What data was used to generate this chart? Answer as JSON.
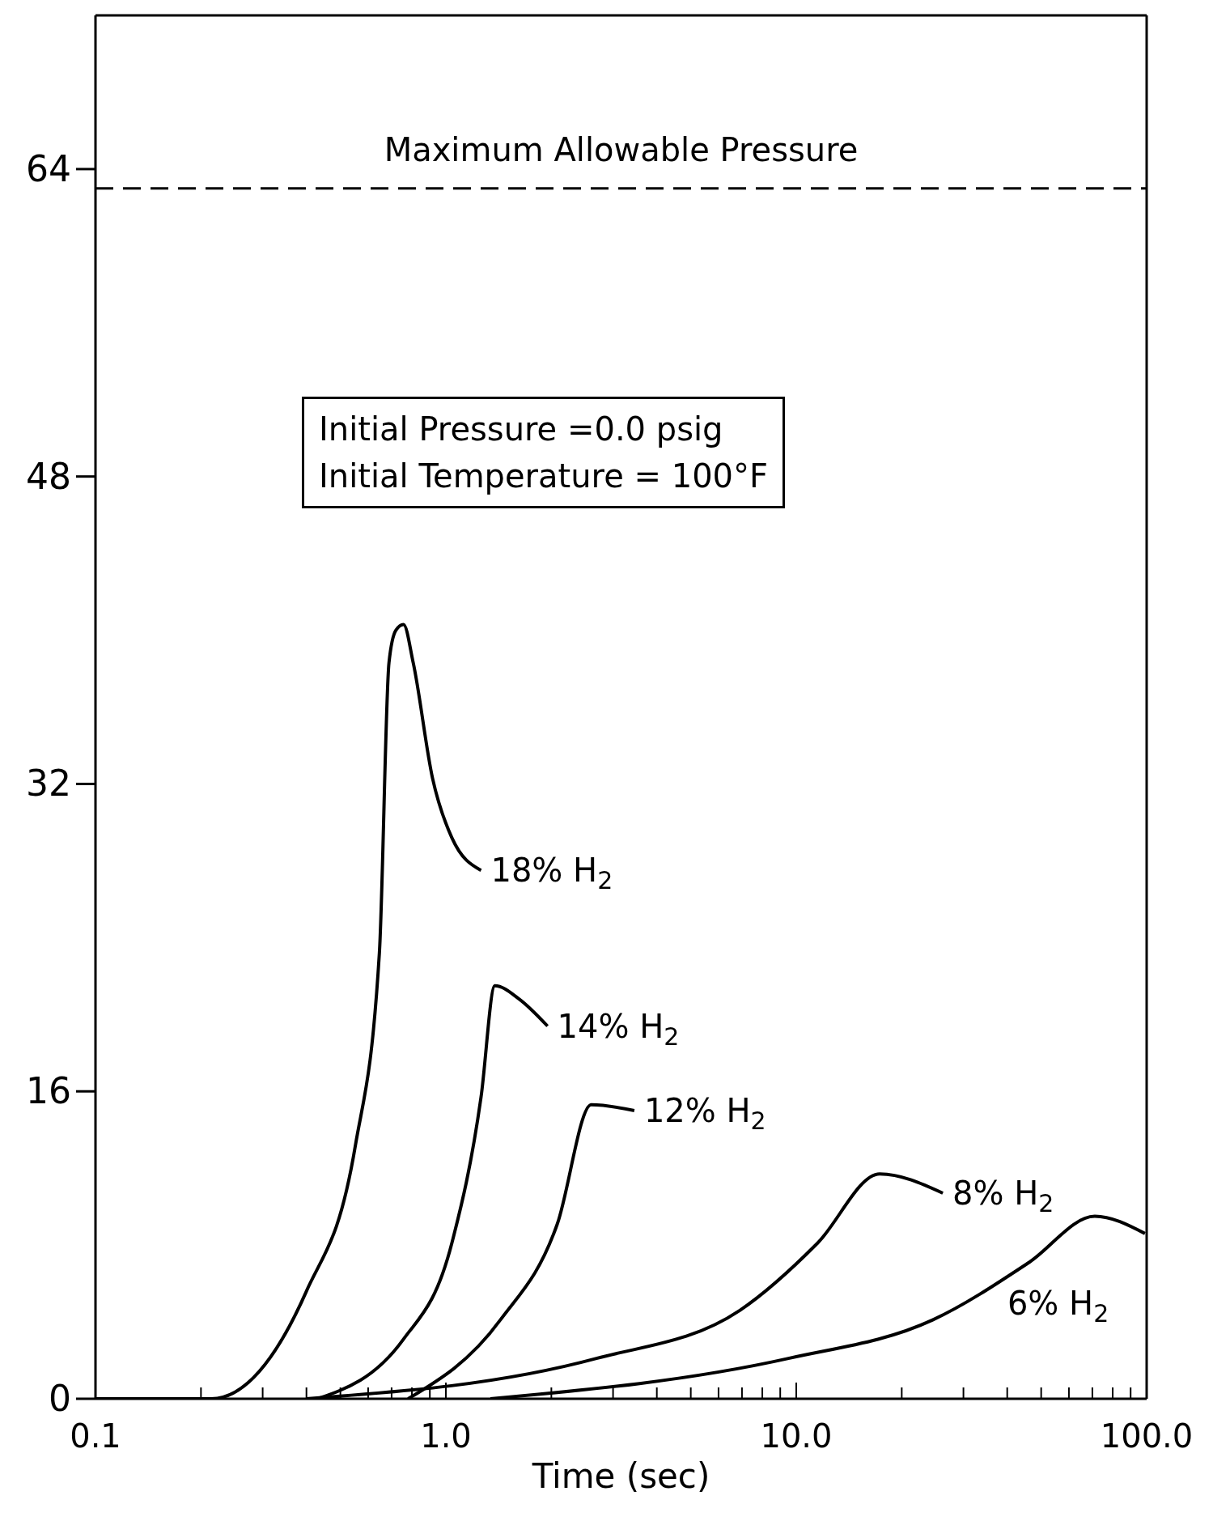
{
  "chart_data": {
    "type": "line",
    "xlabel": "Time (sec)",
    "log": "x",
    "xlim": [
      0.1,
      100
    ],
    "xticks": [
      {
        "value": 0.1,
        "label": "0.1"
      },
      {
        "value": 0.2,
        "label": null
      },
      {
        "value": 0.3,
        "label": null
      },
      {
        "value": 0.4,
        "label": null
      },
      {
        "value": 0.5,
        "label": null
      },
      {
        "value": 0.6,
        "label": null
      },
      {
        "value": 0.7,
        "label": null
      },
      {
        "value": 0.8,
        "label": null
      },
      {
        "value": 0.9,
        "label": null
      },
      {
        "value": 1,
        "label": "1.0"
      },
      {
        "value": 2,
        "label": null
      },
      {
        "value": 3,
        "label": null
      },
      {
        "value": 4,
        "label": null
      },
      {
        "value": 5,
        "label": null
      },
      {
        "value": 6,
        "label": null
      },
      {
        "value": 7,
        "label": null
      },
      {
        "value": 8,
        "label": null
      },
      {
        "value": 9,
        "label": null
      },
      {
        "value": 10,
        "label": "10.0"
      },
      {
        "value": 20,
        "label": null
      },
      {
        "value": 30,
        "label": null
      },
      {
        "value": 40,
        "label": null
      },
      {
        "value": 50,
        "label": null
      },
      {
        "value": 60,
        "label": null
      },
      {
        "value": 70,
        "label": null
      },
      {
        "value": 80,
        "label": null
      },
      {
        "value": 90,
        "label": null
      },
      {
        "value": 100,
        "label": "100.0"
      }
    ],
    "ylim": [
      0,
      72
    ],
    "yticks": [
      0,
      16,
      32,
      48,
      64
    ],
    "marker": "none",
    "line_style": "solid",
    "series": [
      {
        "name": "18% H$_{2}$",
        "color": "#000000",
        "x": [
          0.1,
          0.214,
          0.4,
          0.552,
          0.646,
          0.688,
          0.72,
          0.757,
          0.807,
          0.916,
          1.04,
          1.26
        ],
        "values": [
          0,
          0,
          5.6,
          13.2,
          23.2,
          38.3,
          40,
          40.3,
          38.3,
          32.3,
          29.2,
          27.5
        ]
      },
      {
        "name": "14% H$_{2}$",
        "color": "#000000",
        "x": [
          0.43,
          0.757,
          1.04,
          1.26,
          1.38,
          1.62,
          1.95
        ],
        "values": [
          0,
          3.1,
          8.1,
          15.7,
          21.5,
          20.8,
          19.4
        ]
      },
      {
        "name": "12% H$_{2}$",
        "color": "#000000",
        "x": [
          0.78,
          1.43,
          2.08,
          2.6,
          3.45
        ],
        "values": [
          0,
          4.1,
          9.1,
          15.3,
          15
        ]
      },
      {
        "name": "8% H$_{2}$",
        "color": "#000000",
        "x": [
          0.4,
          2.69,
          6.9,
          11.5,
          17.3,
          26.2
        ],
        "values": [
          0,
          2.1,
          4.6,
          8.1,
          11.7,
          10.7
        ]
      },
      {
        "name": "6% H$_{2}$",
        "color": "#000000",
        "x": [
          1.34,
          9.5,
          24.5,
          46.2,
          71.1,
          98.9
        ],
        "values": [
          0,
          2.1,
          4.1,
          7.1,
          9.5,
          8.6
        ]
      }
    ],
    "ref_lines": [
      {
        "axis": "y",
        "value": 63,
        "label": "Maximum Allowable Pressure",
        "line_style": "dashed",
        "color": "#000000"
      }
    ],
    "annotations": [
      "Initial Pressure =0.0 psig",
      "Initial Temperature = 100°F"
    ]
  }
}
